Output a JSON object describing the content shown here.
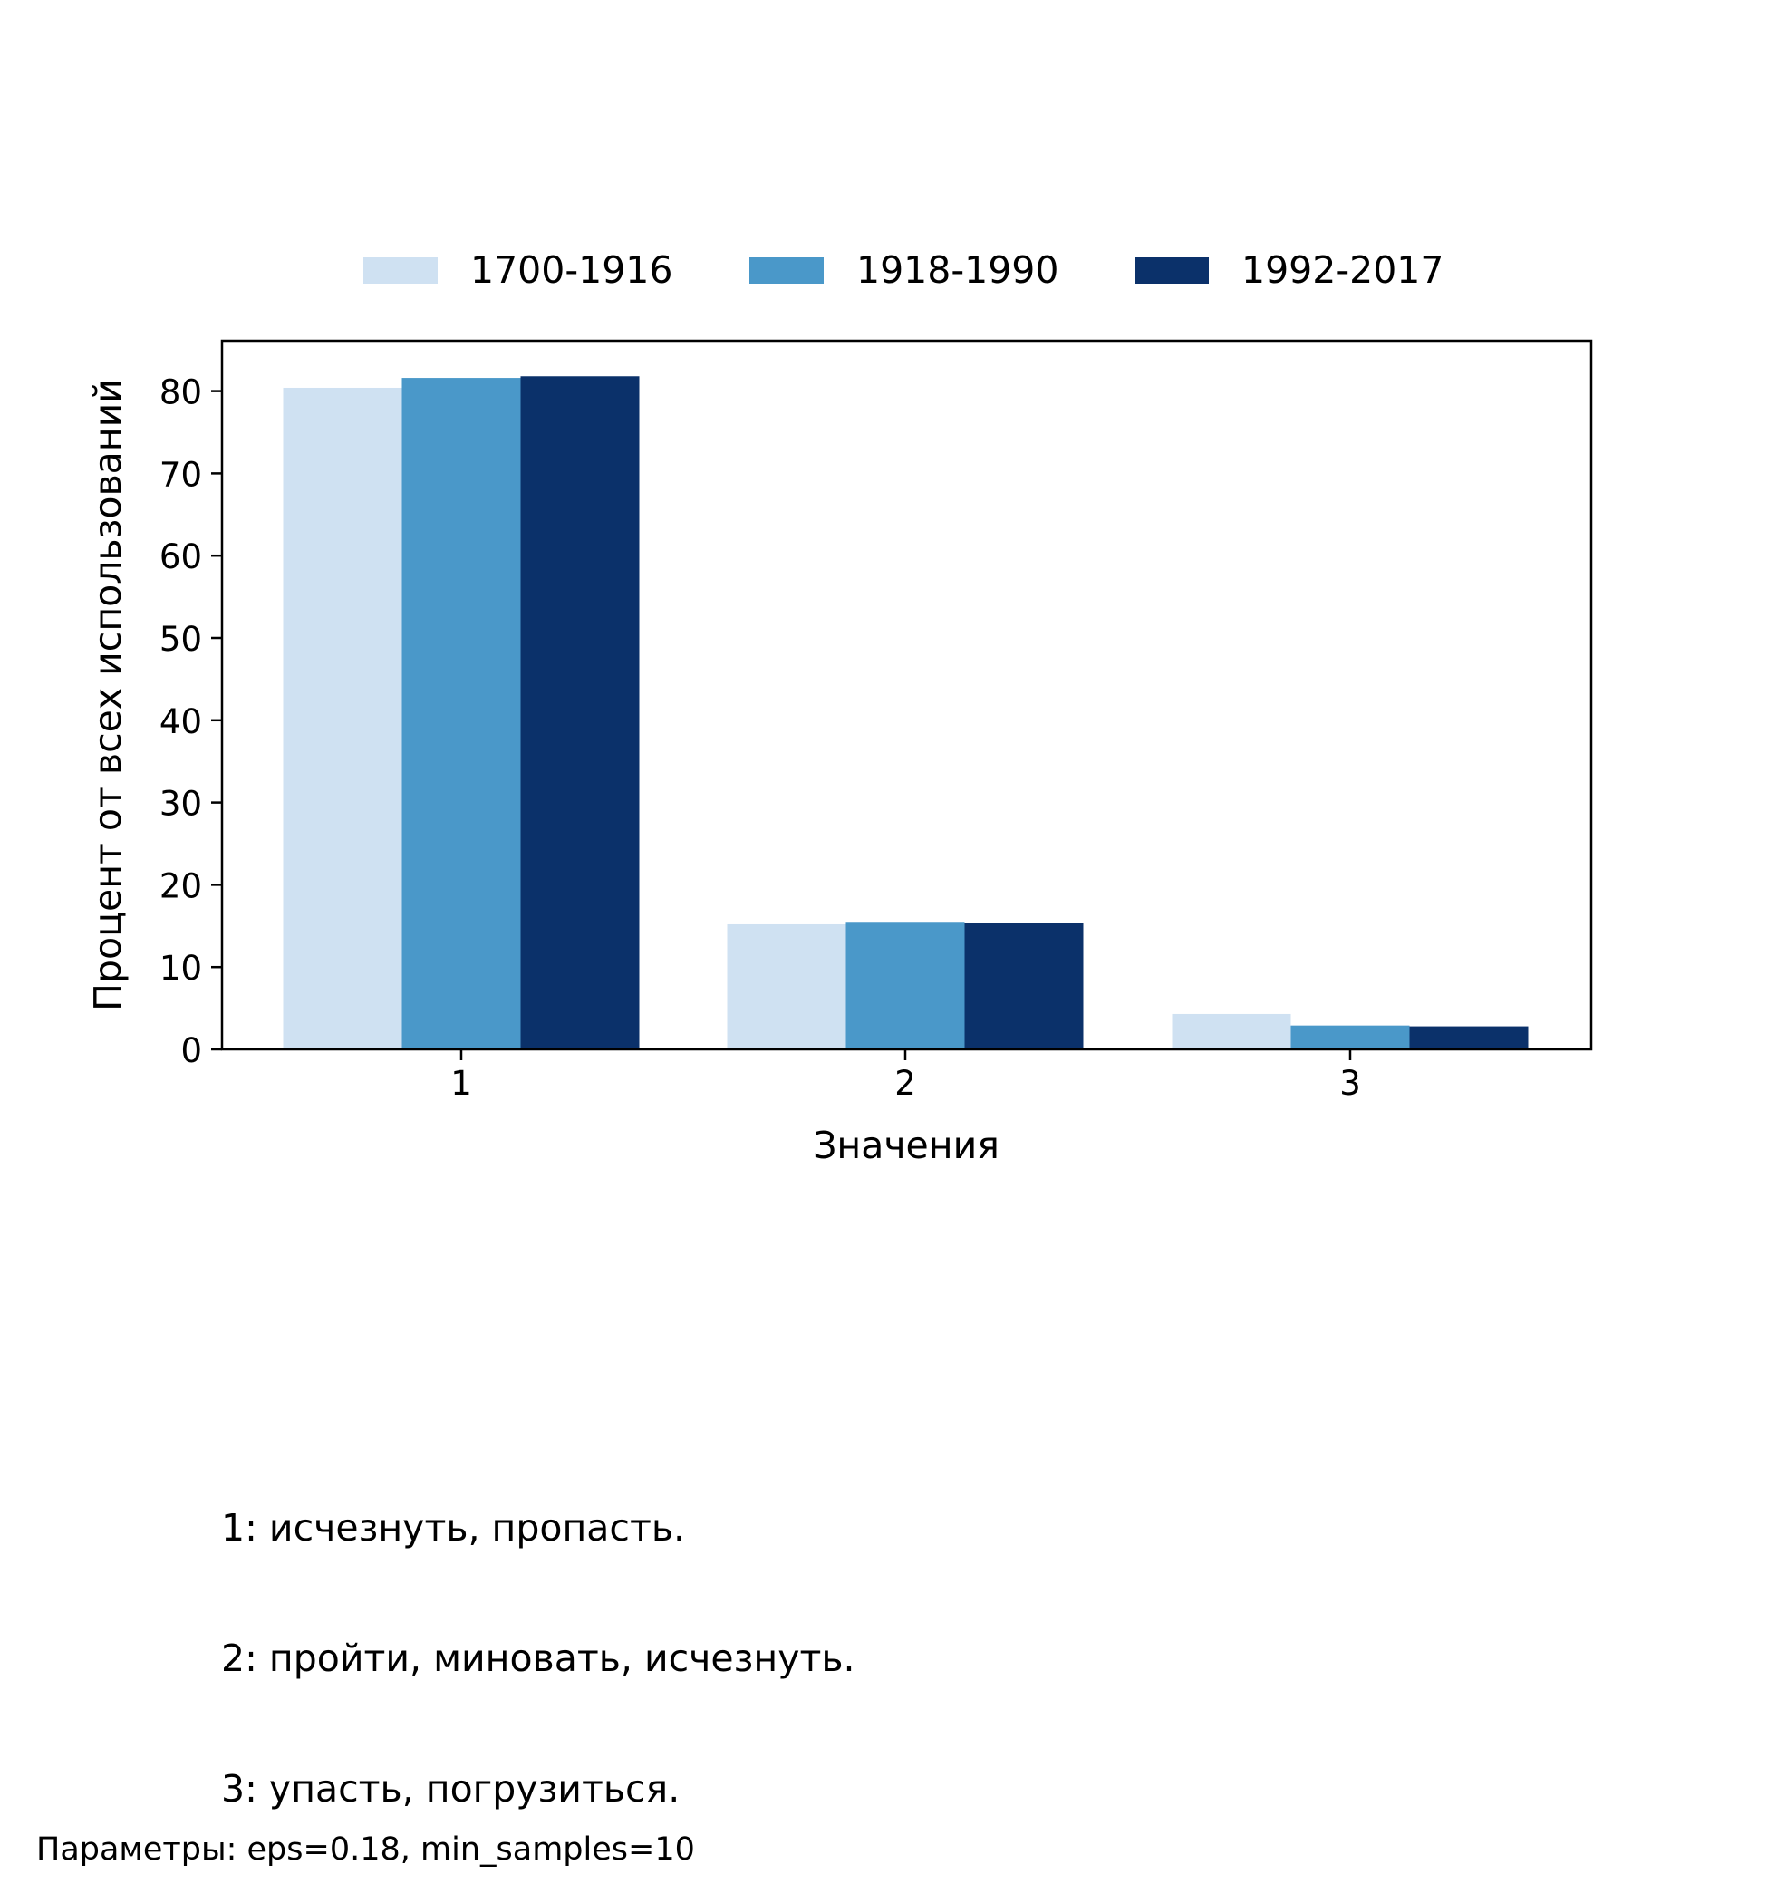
{
  "chart_data": {
    "type": "bar",
    "categories": [
      "1",
      "2",
      "3"
    ],
    "series": [
      {
        "name": "1700-1916",
        "color": "#cfe1f2",
        "values": [
          80.4,
          15.2,
          4.3
        ]
      },
      {
        "name": "1918-1990",
        "color": "#4a98c9",
        "values": [
          81.6,
          15.5,
          2.9
        ]
      },
      {
        "name": "1992-2017",
        "color": "#0b316a",
        "values": [
          81.8,
          15.4,
          2.8
        ]
      }
    ],
    "xlabel": "Значения",
    "ylabel": "Процент от всех использований",
    "ylim": [
      0,
      86
    ],
    "yticks": [
      0,
      10,
      20,
      30,
      40,
      50,
      60,
      70,
      80
    ],
    "grid": false,
    "legend_position": "top-center"
  },
  "notes": [
    "1: исчезнуть, пропасть.",
    "2: пройти, миновать, исчезнуть.",
    "3: упасть, погрузиться."
  ],
  "footer": "Параметры: eps=0.18, min_samples=10"
}
